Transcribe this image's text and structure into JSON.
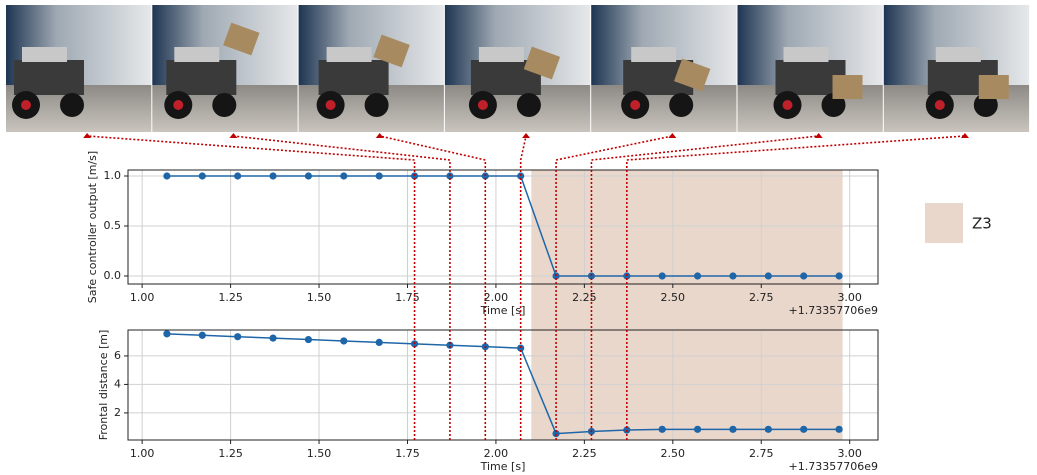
{
  "chart_data": [
    {
      "type": "line",
      "x": [
        1.07,
        1.17,
        1.27,
        1.37,
        1.47,
        1.57,
        1.67,
        1.77,
        1.87,
        1.97,
        2.07,
        2.17,
        2.27,
        2.37,
        2.47,
        2.57,
        2.67,
        2.77,
        2.87,
        2.97
      ],
      "values": [
        1,
        1,
        1,
        1,
        1,
        1,
        1,
        1,
        1,
        1,
        1,
        0,
        0,
        0,
        0,
        0,
        0,
        0,
        0,
        0
      ],
      "color": "#1f66a8",
      "xlim": [
        0.96,
        3.08
      ],
      "ylim": [
        -0.08,
        1.06
      ],
      "xticks": [
        {
          "value": 1,
          "label": "1.00"
        },
        {
          "value": 1.25,
          "label": "1.25"
        },
        {
          "value": 1.5,
          "label": "1.50"
        },
        {
          "value": 1.75,
          "label": "1.75"
        },
        {
          "value": 2,
          "label": "2.00"
        },
        {
          "value": 2.25,
          "label": "2.25"
        },
        {
          "value": 2.5,
          "label": "2.50"
        },
        {
          "value": 2.75,
          "label": "2.75"
        },
        {
          "value": 3,
          "label": "3.00"
        }
      ],
      "yticks": [
        {
          "value": 0,
          "label": "0.0"
        },
        {
          "value": 0.5,
          "label": "0.5"
        },
        {
          "value": 1,
          "label": "1.0"
        }
      ],
      "xlabel": "Time [s]",
      "ylabel": "Safe controller output [m/s]",
      "offset_text": "+1.73357706e9",
      "grid": true,
      "shade": {
        "label": "Z3",
        "x0": 2.1,
        "x1": 2.98,
        "color": "#e9d7cc"
      }
    },
    {
      "type": "line",
      "x": [
        1.07,
        1.17,
        1.27,
        1.37,
        1.47,
        1.57,
        1.67,
        1.77,
        1.87,
        1.97,
        2.07,
        2.17,
        2.27,
        2.37,
        2.47,
        2.57,
        2.67,
        2.77,
        2.87,
        2.97
      ],
      "values": [
        7.55,
        7.45,
        7.35,
        7.25,
        7.15,
        7.05,
        6.95,
        6.85,
        6.75,
        6.65,
        6.55,
        0.55,
        0.7,
        0.8,
        0.85,
        0.85,
        0.85,
        0.85,
        0.85,
        0.85
      ],
      "color": "#1f66a8",
      "xlim": [
        0.96,
        3.08
      ],
      "ylim": [
        0.1,
        7.82
      ],
      "xticks": [
        {
          "value": 1,
          "label": "1.00"
        },
        {
          "value": 1.25,
          "label": "1.25"
        },
        {
          "value": 1.5,
          "label": "1.50"
        },
        {
          "value": 1.75,
          "label": "1.75"
        },
        {
          "value": 2,
          "label": "2.00"
        },
        {
          "value": 2.25,
          "label": "2.25"
        },
        {
          "value": 2.5,
          "label": "2.50"
        },
        {
          "value": 2.75,
          "label": "2.75"
        },
        {
          "value": 3,
          "label": "3.00"
        }
      ],
      "yticks": [
        2,
        4,
        6
      ],
      "xlabel": "Time [s]",
      "ylabel": "Frontal distance [m]",
      "offset_text": "+1.73357706e9",
      "grid": true
    }
  ]
}
